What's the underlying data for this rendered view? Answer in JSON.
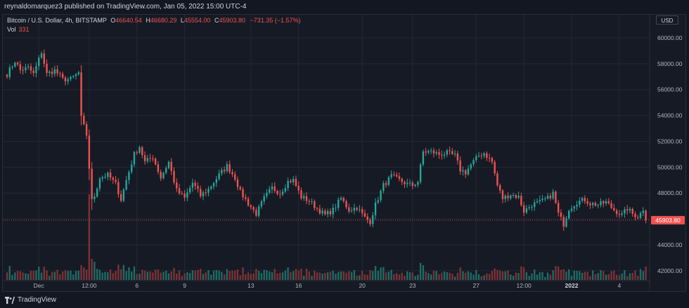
{
  "header": {
    "published_text": "reynaldomarquez3 published on TradingView.com, Jan 05, 2022 15:00 UTC-4"
  },
  "legend": {
    "symbol": "Bitcoin / U.S. Dollar, 4h, BITSTAMP",
    "open_label": "O",
    "open": "46640.54",
    "high_label": "H",
    "high": "46680.29",
    "low_label": "L",
    "low": "45554.00",
    "close_label": "C",
    "close": "45903.80",
    "change": "−731.35 (−1.57%)",
    "vol_label": "Vol",
    "vol_value": "331"
  },
  "currency": "USD",
  "footer": {
    "brand": "TradingView"
  },
  "colors": {
    "up": "#26a69a",
    "down": "#ef5350",
    "up_volume": "#1f6b64",
    "down_volume": "#7a3336",
    "background": "#161a25",
    "grid": "#232834",
    "price_tag": "#ef5350"
  },
  "chart_data": {
    "type": "candlestick",
    "title": "Bitcoin / U.S. Dollar, 4h, BITSTAMP",
    "y_range": [
      40800,
      61300
    ],
    "y_ticks": [
      42000,
      44000,
      46000,
      48000,
      50000,
      52000,
      54000,
      56000,
      58000,
      60000
    ],
    "y_tick_labels": [
      "42000.00",
      "44000.00",
      "46000.00",
      "48000.00",
      "50000.00",
      "52000.00",
      "54000.00",
      "56000.00",
      "58000.00",
      "60000.00"
    ],
    "last_price": 45903.8,
    "last_price_label": "45903.80",
    "x_ticks": [
      {
        "label": "Dec",
        "bar": 12
      },
      {
        "label": "12:00",
        "bar": 31
      },
      {
        "label": "6",
        "bar": 49
      },
      {
        "label": "9",
        "bar": 67
      },
      {
        "label": "13",
        "bar": 92
      },
      {
        "label": "16",
        "bar": 110
      },
      {
        "label": "20",
        "bar": 134
      },
      {
        "label": "23",
        "bar": 153
      },
      {
        "label": "27",
        "bar": 177
      },
      {
        "label": "12:00",
        "bar": 195
      },
      {
        "label": "2022",
        "bar": 213
      },
      {
        "label": "4",
        "bar": 231
      }
    ],
    "x_tick_bold": [
      "2022"
    ],
    "grid": true,
    "volume_pane": true,
    "anchors": [
      [
        0,
        57200
      ],
      [
        3,
        58200
      ],
      [
        5,
        57500
      ],
      [
        8,
        57700
      ],
      [
        10,
        57200
      ],
      [
        13,
        58900
      ],
      [
        15,
        57200
      ],
      [
        18,
        57500
      ],
      [
        21,
        56800
      ],
      [
        24,
        56800
      ],
      [
        27,
        57300
      ],
      [
        28,
        53800
      ],
      [
        30,
        52500
      ],
      [
        32,
        47400
      ],
      [
        33,
        47800
      ],
      [
        35,
        49200
      ],
      [
        38,
        49400
      ],
      [
        41,
        48700
      ],
      [
        43,
        47500
      ],
      [
        45,
        49000
      ],
      [
        48,
        51000
      ],
      [
        50,
        51600
      ],
      [
        52,
        50400
      ],
      [
        55,
        50800
      ],
      [
        58,
        49200
      ],
      [
        61,
        50400
      ],
      [
        64,
        48200
      ],
      [
        67,
        47600
      ],
      [
        70,
        48800
      ],
      [
        73,
        47800
      ],
      [
        76,
        48300
      ],
      [
        80,
        49400
      ],
      [
        83,
        50100
      ],
      [
        86,
        49200
      ],
      [
        88,
        48100
      ],
      [
        91,
        47200
      ],
      [
        94,
        46400
      ],
      [
        97,
        47600
      ],
      [
        100,
        48400
      ],
      [
        103,
        48000
      ],
      [
        106,
        48900
      ],
      [
        108,
        49000
      ],
      [
        111,
        47700
      ],
      [
        114,
        47400
      ],
      [
        117,
        46800
      ],
      [
        120,
        46300
      ],
      [
        123,
        46700
      ],
      [
        126,
        47600
      ],
      [
        129,
        46700
      ],
      [
        132,
        46900
      ],
      [
        135,
        46100
      ],
      [
        137,
        45800
      ],
      [
        139,
        47100
      ],
      [
        142,
        48600
      ],
      [
        145,
        49300
      ],
      [
        148,
        49000
      ],
      [
        151,
        48700
      ],
      [
        153,
        48600
      ],
      [
        155,
        48900
      ],
      [
        157,
        51200
      ],
      [
        160,
        51200
      ],
      [
        163,
        51000
      ],
      [
        166,
        51100
      ],
      [
        169,
        50900
      ],
      [
        171,
        49800
      ],
      [
        173,
        49600
      ],
      [
        175,
        50200
      ],
      [
        178,
        50900
      ],
      [
        180,
        51100
      ],
      [
        183,
        50400
      ],
      [
        185,
        48600
      ],
      [
        187,
        47600
      ],
      [
        190,
        47900
      ],
      [
        193,
        47700
      ],
      [
        195,
        46600
      ],
      [
        198,
        47100
      ],
      [
        201,
        47300
      ],
      [
        204,
        47600
      ],
      [
        206,
        48000
      ],
      [
        208,
        46400
      ],
      [
        210,
        45600
      ],
      [
        212,
        46800
      ],
      [
        215,
        47300
      ],
      [
        218,
        47500
      ],
      [
        220,
        47200
      ],
      [
        223,
        47100
      ],
      [
        226,
        47300
      ],
      [
        229,
        46700
      ],
      [
        232,
        46300
      ],
      [
        234,
        46800
      ],
      [
        236,
        46400
      ],
      [
        238,
        46200
      ],
      [
        240,
        46640
      ],
      [
        241,
        45904
      ]
    ]
  }
}
